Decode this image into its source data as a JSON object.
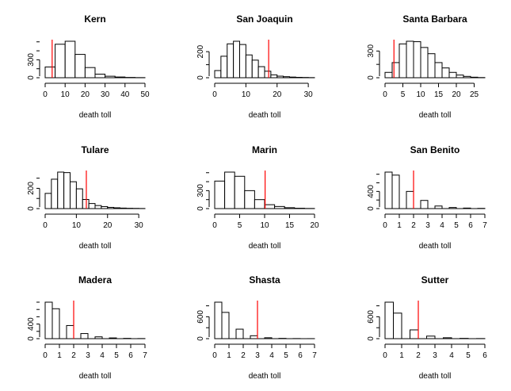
{
  "chart_data": [
    {
      "type": "bar",
      "title": "Kern",
      "xlabel": "death toll",
      "breaks": [
        0,
        5,
        10,
        15,
        20,
        25,
        30,
        35,
        40,
        45,
        50
      ],
      "counts": [
        180,
        560,
        610,
        390,
        170,
        60,
        25,
        12,
        5,
        2
      ],
      "xlim": [
        0,
        50
      ],
      "xticks": [
        0,
        10,
        20,
        30,
        40,
        50
      ],
      "ylim": [
        0,
        610
      ],
      "yticks": [
        0,
        300
      ],
      "vline": 3.5
    },
    {
      "type": "bar",
      "title": "San Joaquin",
      "xlabel": "death toll",
      "breaks": [
        0,
        2,
        4,
        6,
        8,
        10,
        12,
        14,
        16,
        18,
        20,
        22,
        24,
        26,
        28,
        30,
        32
      ],
      "counts": [
        55,
        165,
        260,
        280,
        255,
        175,
        135,
        85,
        50,
        22,
        12,
        8,
        5,
        3,
        2,
        1
      ],
      "xlim": [
        0,
        32
      ],
      "xticks": [
        0,
        10,
        20,
        30
      ],
      "ylim": [
        0,
        280
      ],
      "yticks": [
        0,
        200
      ],
      "vline": 17.3
    },
    {
      "type": "bar",
      "title": "Santa Barbara",
      "xlabel": "death toll",
      "breaks": [
        0,
        2,
        4,
        6,
        8,
        10,
        12,
        14,
        16,
        18,
        20,
        22,
        24,
        26,
        28
      ],
      "counts": [
        60,
        170,
        380,
        410,
        405,
        340,
        270,
        170,
        110,
        60,
        30,
        15,
        6,
        2
      ],
      "xlim": [
        0,
        28
      ],
      "xticks": [
        0,
        5,
        10,
        15,
        20,
        25
      ],
      "ylim": [
        0,
        410
      ],
      "yticks": [
        0,
        300
      ],
      "vline": 2.5
    },
    {
      "type": "bar",
      "title": "Tulare",
      "xlabel": "death toll",
      "breaks": [
        0,
        2,
        4,
        6,
        8,
        10,
        12,
        14,
        16,
        18,
        20,
        22,
        24,
        26,
        28,
        30,
        32
      ],
      "counts": [
        150,
        290,
        360,
        355,
        265,
        195,
        90,
        50,
        30,
        20,
        12,
        8,
        5,
        3,
        2,
        1
      ],
      "xlim": [
        0,
        32
      ],
      "xticks": [
        0,
        10,
        20,
        30
      ],
      "ylim": [
        0,
        360
      ],
      "yticks": [
        0,
        200
      ],
      "vline": 13.2
    },
    {
      "type": "bar",
      "title": "Marin",
      "xlabel": "death toll",
      "breaks": [
        0,
        2,
        4,
        6,
        8,
        10,
        12,
        14,
        16,
        18,
        20
      ],
      "counts": [
        460,
        610,
        540,
        300,
        150,
        65,
        35,
        15,
        6,
        2
      ],
      "xlim": [
        0,
        20
      ],
      "xticks": [
        0,
        5,
        10,
        15,
        20
      ],
      "ylim": [
        0,
        610
      ],
      "yticks": [
        0,
        300
      ],
      "vline": 10.1
    },
    {
      "type": "bar",
      "title": "San Benito",
      "xlabel": "death toll",
      "breaks": [
        0,
        0.5,
        1,
        1.5,
        2,
        2.5,
        3,
        3.5,
        4,
        4.5,
        5,
        5.5,
        6,
        6.5,
        7
      ],
      "counts": [
        850,
        780,
        0,
        400,
        0,
        190,
        0,
        60,
        0,
        25,
        0,
        12,
        0,
        5
      ],
      "xlim": [
        0,
        7
      ],
      "xticks": [
        0,
        1,
        2,
        3,
        4,
        5,
        6,
        7
      ],
      "ylim": [
        0,
        850
      ],
      "yticks": [
        0,
        400
      ],
      "vline": 2
    },
    {
      "type": "bar",
      "title": "Madera",
      "xlabel": "death toll",
      "breaks": [
        0,
        0.5,
        1,
        1.5,
        2,
        2.5,
        3,
        3.5,
        4,
        4.5,
        5,
        5.5,
        6,
        6.5,
        7
      ],
      "counts": [
        1000,
        820,
        0,
        360,
        0,
        140,
        0,
        50,
        0,
        20,
        0,
        8,
        0,
        3
      ],
      "xlim": [
        0,
        7
      ],
      "xticks": [
        0,
        1,
        2,
        3,
        4,
        5,
        6,
        7
      ],
      "ylim": [
        0,
        1000
      ],
      "yticks": [
        0,
        400
      ],
      "vline": 2
    },
    {
      "type": "bar",
      "title": "Shasta",
      "xlabel": "death toll",
      "breaks": [
        0,
        0.5,
        1,
        1.5,
        2,
        2.5,
        3,
        3.5,
        4,
        4.5,
        5,
        5.5,
        6,
        6.5,
        7
      ],
      "counts": [
        1000,
        720,
        0,
        260,
        0,
        80,
        0,
        25,
        0,
        8,
        0,
        3,
        0,
        1
      ],
      "xlim": [
        0,
        7
      ],
      "xticks": [
        0,
        1,
        2,
        3,
        4,
        5,
        6,
        7
      ],
      "ylim": [
        0,
        1000
      ],
      "yticks": [
        0,
        600
      ],
      "vline": 3
    },
    {
      "type": "bar",
      "title": "Sutter",
      "xlabel": "death toll",
      "breaks": [
        0,
        0.5,
        1,
        1.5,
        2,
        2.5,
        3,
        3.5,
        4,
        4.5,
        5,
        5.5,
        6
      ],
      "counts": [
        1000,
        700,
        0,
        240,
        0,
        70,
        0,
        25,
        0,
        8,
        0,
        3
      ],
      "xlim": [
        0,
        6
      ],
      "xticks": [
        0,
        1,
        2,
        3,
        4,
        5,
        6
      ],
      "ylim": [
        0,
        1000
      ],
      "yticks": [
        0,
        600
      ],
      "vline": 2
    }
  ]
}
